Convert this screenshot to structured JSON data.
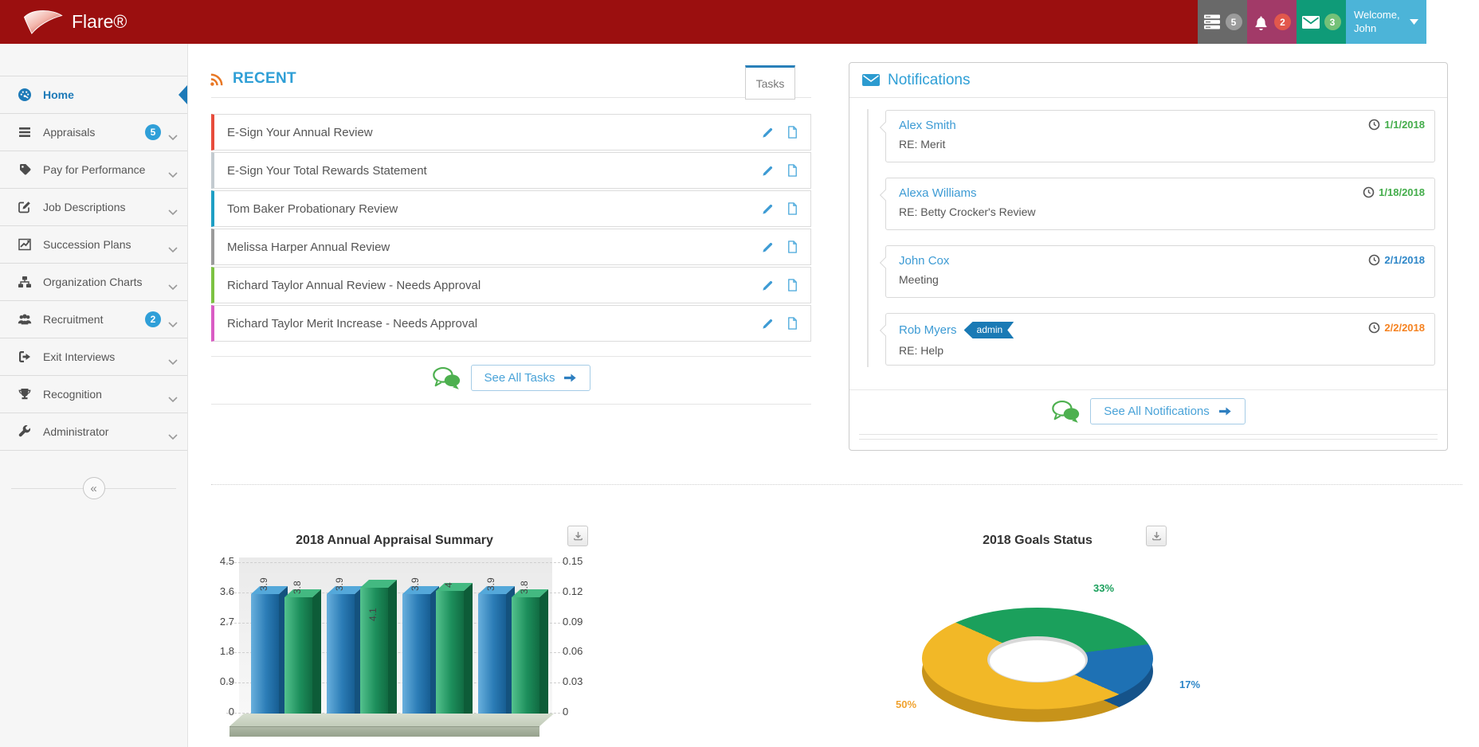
{
  "header": {
    "brand": "Flare®",
    "bar_color": "#9b0f0f",
    "indicators": [
      {
        "name": "queue",
        "icon": "server-icon",
        "count": "5",
        "block_color": "#696969",
        "badge_color": "#9b9b9b"
      },
      {
        "name": "alerts",
        "icon": "bell-icon",
        "count": "2",
        "block_color": "#a23a68",
        "badge_color": "#e2574c"
      },
      {
        "name": "messages",
        "icon": "mail-icon",
        "count": "3",
        "block_color": "#0f9b78",
        "badge_color": "#74c178"
      }
    ],
    "welcome": {
      "line1": "Welcome,",
      "line2": "John",
      "block_color": "#4cb4d8"
    }
  },
  "sidebar": {
    "active_color": "#1d7ab8",
    "badge_color": "#2f9fd8",
    "collapse_glyph": "«",
    "items": [
      {
        "label": "Home",
        "icon": "dashboard-icon",
        "active": true
      },
      {
        "label": "Appraisals",
        "icon": "list-icon",
        "badge": "5",
        "chevron": true
      },
      {
        "label": "Pay for Performance",
        "icon": "tag-icon",
        "chevron": true
      },
      {
        "label": "Job Descriptions",
        "icon": "edit-icon",
        "chevron": true
      },
      {
        "label": "Succession Plans",
        "icon": "chart-line-icon",
        "chevron": true
      },
      {
        "label": "Organization Charts",
        "icon": "sitemap-icon",
        "chevron": true
      },
      {
        "label": "Recruitment",
        "icon": "users-icon",
        "badge": "2",
        "chevron": true
      },
      {
        "label": "Exit Interviews",
        "icon": "sign-out-icon",
        "chevron": true
      },
      {
        "label": "Recognition",
        "icon": "trophy-icon",
        "chevron": true
      },
      {
        "label": "Administrator",
        "icon": "wrench-icon",
        "chevron": true
      }
    ]
  },
  "recent": {
    "title": "RECENT",
    "tab_label": "Tasks",
    "see_all_label": "See All Tasks",
    "tasks": [
      {
        "label": "E-Sign Your Annual Review",
        "color": "#e74c3c"
      },
      {
        "label": "E-Sign Your Total Rewards Statement",
        "color": "#c3cbd0"
      },
      {
        "label": "Tom Baker Probationary Review",
        "color": "#1e9fc4"
      },
      {
        "label": "Melissa Harper Annual Review",
        "color": "#9b9b9b"
      },
      {
        "label": "Richard Taylor Annual Review - Needs Approval",
        "color": "#7cc242"
      },
      {
        "label": "Richard Taylor Merit Increase - Needs Approval",
        "color": "#d95cc4"
      }
    ]
  },
  "notifications": {
    "title": "Notifications",
    "see_all_label": "See All Notifications",
    "items": [
      {
        "name": "Alex Smith",
        "subject": "RE: Merit",
        "date": "1/1/2018",
        "date_color": "#44ad4b"
      },
      {
        "name": "Alexa Williams",
        "subject": "RE: Betty Crocker's Review",
        "date": "1/18/2018",
        "date_color": "#44ad4b"
      },
      {
        "name": "John Cox",
        "subject": "Meeting",
        "date": "2/1/2018",
        "date_color": "#2d86c8"
      },
      {
        "name": "Rob Myers",
        "badge": "admin",
        "subject": "RE: Help",
        "date": "2/2/2018",
        "date_color": "#f58220"
      }
    ]
  },
  "chart_data": [
    {
      "type": "bar",
      "title": "2018 Annual Appraisal Summary",
      "groups": 4,
      "series": [
        {
          "name": "appraisal-score-blue",
          "values": [
            3.9,
            3.9,
            3.9,
            3.9
          ],
          "labels": [
            "3.9",
            "3.9",
            "3.9",
            "3.9"
          ],
          "labels_inside": [
            false,
            false,
            false,
            false
          ],
          "front_gradient": [
            "#69b0dd",
            "#2b7cb6",
            "#175e93"
          ],
          "top_color": "#54a8da",
          "side_color": "#14527e"
        },
        {
          "name": "appraisal-score-green",
          "values": [
            3.8,
            4.1,
            4.0,
            3.8
          ],
          "labels": [
            "3.8",
            "4.1",
            "4",
            "3.8"
          ],
          "labels_inside": [
            false,
            true,
            false,
            false
          ],
          "front_gradient": [
            "#54c28e",
            "#1d8f5c",
            "#116b42"
          ],
          "top_color": "#43b981",
          "side_color": "#0d5c38"
        }
      ],
      "left_axis_ticks": [
        "4.5",
        "3.6",
        "2.7",
        "1.8",
        "0.9",
        "0"
      ],
      "right_axis_ticks": [
        "0.15",
        "0.12",
        "0.09",
        "0.06",
        "0.03",
        "0"
      ],
      "ylim": [
        0,
        4.5
      ],
      "grid": true,
      "legend": false
    },
    {
      "type": "donut",
      "title": "2018 Goals Status",
      "start_angle": 315,
      "slices": [
        {
          "label": "33%",
          "value": 33,
          "color": "#1ba05c",
          "dark_color": "#12814a",
          "label_color": "#1ba05c"
        },
        {
          "label": "17%",
          "value": 17,
          "color": "#1e71b4",
          "dark_color": "#15538a",
          "label_color": "#2d86c8"
        },
        {
          "label": "50%",
          "value": 50,
          "color": "#f2b827",
          "dark_color": "#c7931a",
          "label_color": "#f0a22e"
        }
      ]
    }
  ]
}
